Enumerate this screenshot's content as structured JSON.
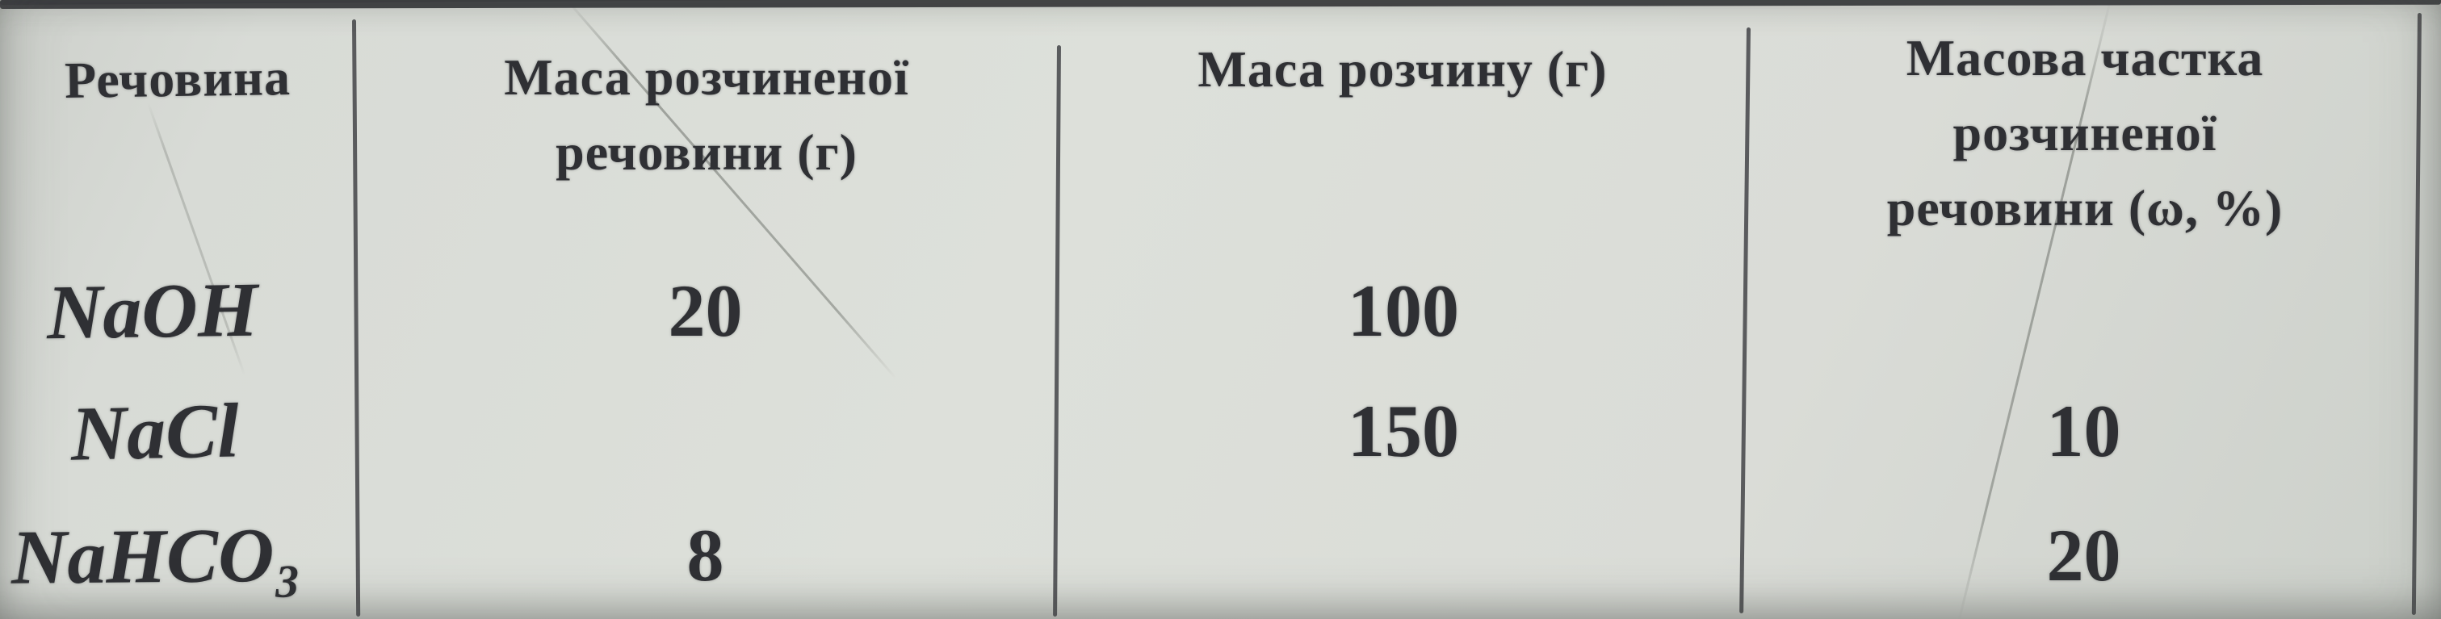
{
  "colors": {
    "paper": "#d9dcd7",
    "ink": "#2f3034",
    "rule": "#48494c"
  },
  "table": {
    "headers": [
      "Речовина",
      "Маса розчиненої речовини (г)",
      "Маса розчину (г)",
      "Масова частка розчиненої речовини (ω, %)"
    ],
    "rows": [
      {
        "substance": "NaOH",
        "solute_mass_g": "20",
        "solution_mass_g": "100",
        "mass_fraction_pct": ""
      },
      {
        "substance": "NaCl",
        "solute_mass_g": "",
        "solution_mass_g": "150",
        "mass_fraction_pct": "10"
      },
      {
        "substance": "NaHCO₃",
        "solute_mass_g": "8",
        "solution_mass_g": "",
        "mass_fraction_pct": "20"
      }
    ]
  }
}
